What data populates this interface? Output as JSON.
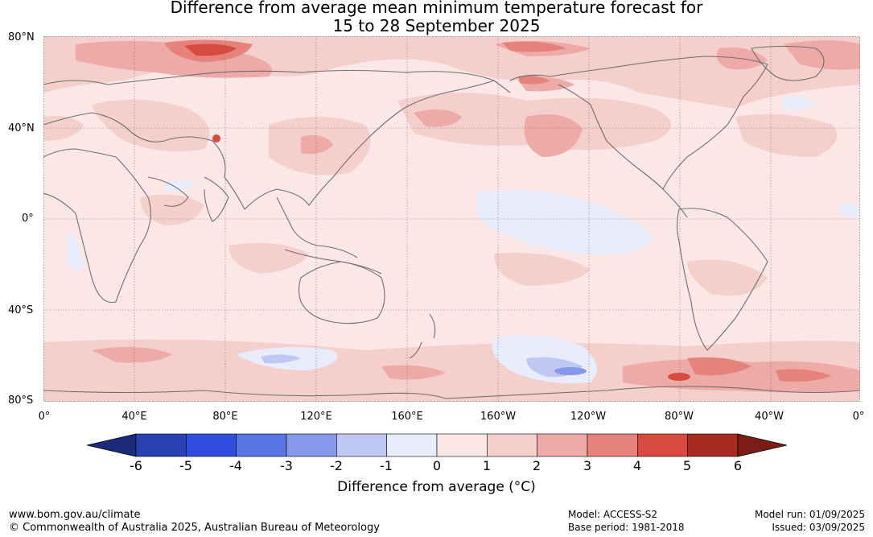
{
  "title_line1": "Difference from average mean minimum temperature forecast for",
  "title_line2": "15 to 28 September 2025",
  "lat_labels": [
    "80°N",
    "40°N",
    "0°",
    "40°S",
    "80°S"
  ],
  "lon_labels": [
    "0°",
    "40°E",
    "80°E",
    "120°E",
    "160°E",
    "160°W",
    "120°W",
    "80°W",
    "40°W",
    "0°"
  ],
  "colorbar": {
    "title": "Difference from average (°C)",
    "tick_labels": [
      "-6",
      "-5",
      "-4",
      "-3",
      "-2",
      "-1",
      "0",
      "1",
      "2",
      "3",
      "4",
      "5",
      "6"
    ],
    "colors": [
      "#1c2a7a",
      "#2a41b4",
      "#304ddf",
      "#5a76e6",
      "#8698ea",
      "#bfc8f2",
      "#e9ecfa",
      "#fbe8e6",
      "#f4cfcc",
      "#edaaa6",
      "#e6827c",
      "#d84a40",
      "#a82a21",
      "#7b1c17"
    ]
  },
  "footer": {
    "url": "www.bom.gov.au/climate",
    "copyright": "© Commonwealth of Australia 2025, Australian Bureau of Meteorology",
    "model": "Model: ACCESS-S2",
    "base_period": "Base period: 1981-2018",
    "model_run": "Model run: 01/09/2025",
    "issued": "Issued: 03/09/2025"
  }
}
